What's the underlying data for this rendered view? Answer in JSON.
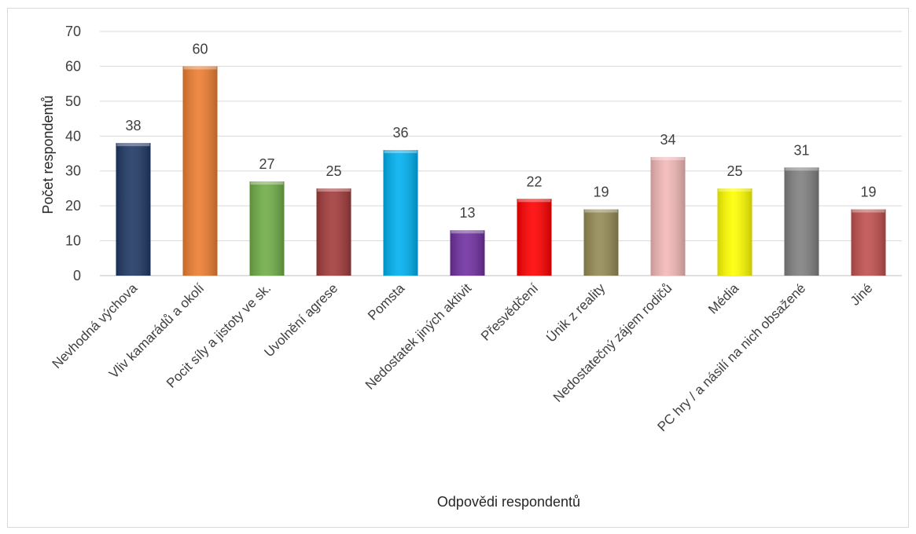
{
  "chart_data": {
    "type": "bar",
    "categories": [
      "Nevhodná výchova",
      "Vliv kamarádů a okolí",
      "Pocit síly a jistoty ve sk.",
      "Uvolnění agrese",
      "Pomsta",
      "Nedostatek jiných aktivit",
      "Přesvědčení",
      "Únik z reality",
      "Nedostatečný zájem rodičů",
      "Média",
      "PC hry / a násilí na nich obsažené",
      "Jiné"
    ],
    "values": [
      38,
      60,
      27,
      25,
      36,
      13,
      22,
      19,
      34,
      25,
      31,
      19
    ],
    "colors": [
      "#1f3864",
      "#ed7d31",
      "#70ad47",
      "#a23b3b",
      "#00b0f0",
      "#7030a0",
      "#ff0000",
      "#948a54",
      "#f2b8b8",
      "#ffff00",
      "#808080",
      "#c0504d"
    ],
    "xlabel": "Odpovědi respondentů",
    "ylabel": "Počet respondentů",
    "ylim": [
      0,
      70
    ],
    "yticks": [
      0,
      10,
      20,
      30,
      40,
      50,
      60,
      70
    ],
    "grid": true,
    "data_labels": true
  }
}
